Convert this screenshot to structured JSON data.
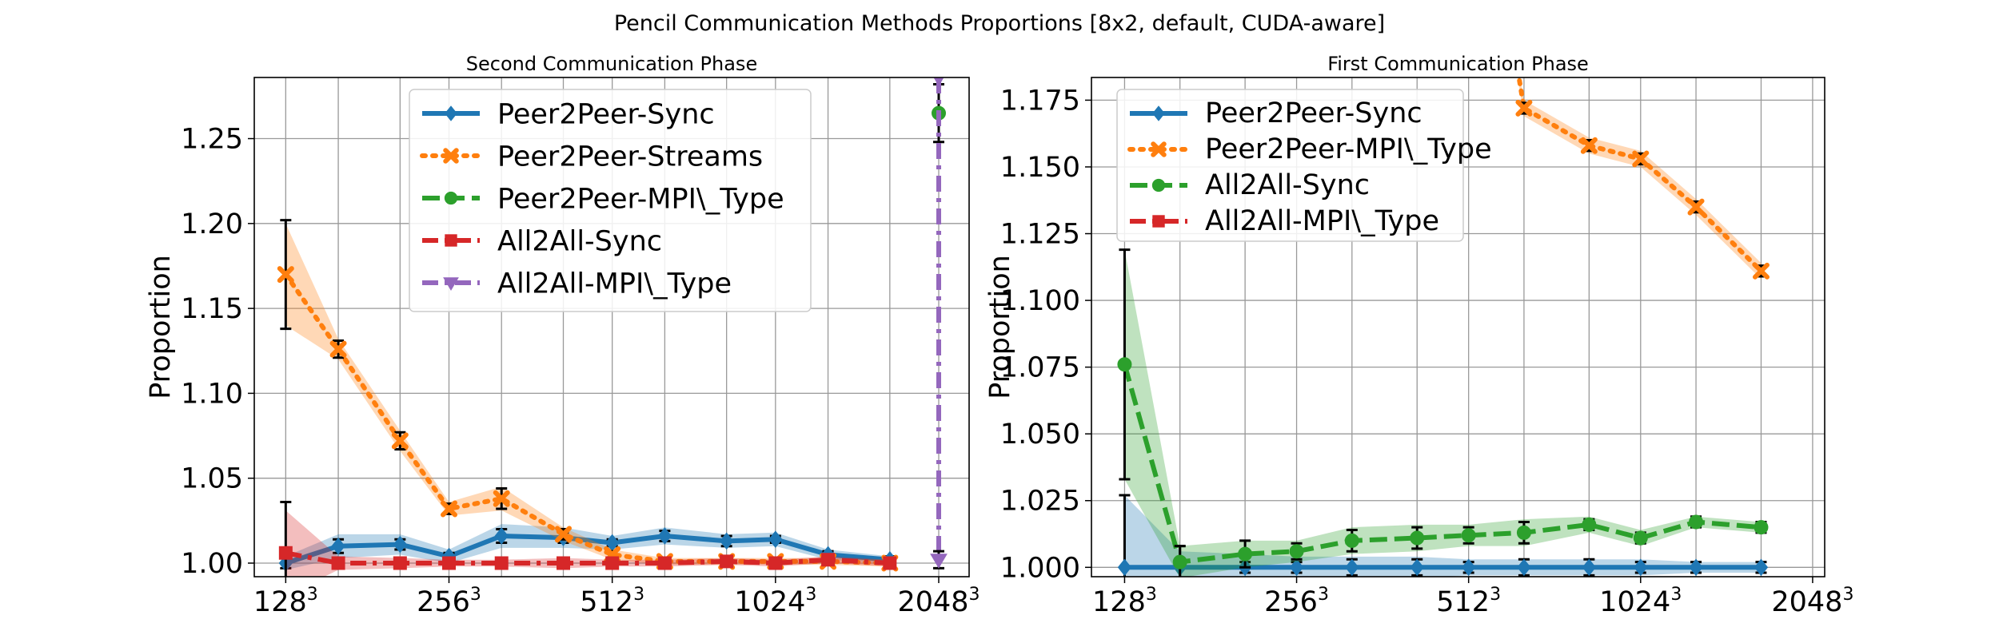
{
  "figure_title": "Pencil Communication Methods Proportions [8x2, default, CUDA-aware]",
  "chart_data": [
    {
      "type": "line",
      "title": "Second Communication Phase",
      "xlabel": "",
      "ylabel": "Proportion",
      "xscale": "log2",
      "xlim": [
        112,
        2330
      ],
      "ylim": [
        0.992,
        1.286
      ],
      "grid": true,
      "legend_position": "upper center",
      "x_ticks": [
        {
          "value": 128,
          "base": "128",
          "exp": "3"
        },
        {
          "value": 256,
          "base": "256",
          "exp": "3"
        },
        {
          "value": 512,
          "base": "512",
          "exp": "3"
        },
        {
          "value": 1024,
          "base": "1024",
          "exp": "3"
        },
        {
          "value": 2048,
          "base": "2048",
          "exp": "3"
        }
      ],
      "y_ticks": [
        "1.00",
        "1.05",
        "1.10",
        "1.15",
        "1.20",
        "1.25"
      ],
      "series": [
        {
          "name": "Peer2Peer-Sync",
          "color": "#1f77b4",
          "style": "solid",
          "marker": "diamond",
          "x": [
            128,
            160,
            208,
            256,
            320,
            416,
            512,
            640,
            832,
            1024,
            1280,
            1664
          ],
          "y": [
            1.0,
            1.01,
            1.011,
            1.004,
            1.016,
            1.015,
            1.012,
            1.016,
            1.013,
            1.014,
            1.005,
            1.002
          ],
          "err": [
            0.003,
            0.004,
            0.003,
            0.002,
            0.004,
            0.003,
            0.002,
            0.003,
            0.003,
            0.002,
            0.002,
            0.002
          ],
          "band": [
            0.004,
            0.007,
            0.006,
            0.004,
            0.007,
            0.006,
            0.004,
            0.005,
            0.004,
            0.004,
            0.003,
            0.002
          ]
        },
        {
          "name": "Peer2Peer-Streams",
          "color": "#ff7f0e",
          "style": "dotted",
          "marker": "x",
          "x": [
            128,
            160,
            208,
            256,
            320,
            416,
            512,
            640,
            832,
            1024,
            1280,
            1664
          ],
          "y": [
            1.17,
            1.126,
            1.072,
            1.032,
            1.038,
            1.017,
            1.005,
            1.001,
            1.001,
            1.001,
            1.001,
            1.0
          ],
          "err": [
            0.032,
            0.005,
            0.005,
            0.003,
            0.006,
            0.003,
            0.002,
            0.001,
            0.001,
            0.001,
            0.001,
            0.001
          ],
          "band": [
            0.03,
            0.006,
            0.006,
            0.004,
            0.007,
            0.004,
            0.003,
            0.002,
            0.002,
            0.002,
            0.002,
            0.002
          ]
        },
        {
          "name": "Peer2Peer-MPI\\_Type",
          "color": "#2ca02c",
          "style": "dashed",
          "marker": "circle",
          "x": [
            2048
          ],
          "y": [
            1.265
          ],
          "err": [
            0.017
          ],
          "band": [
            0.0
          ]
        },
        {
          "name": "All2All-Sync",
          "color": "#d62728",
          "style": "dashdot",
          "marker": "square",
          "x": [
            128,
            160,
            208,
            256,
            320,
            416,
            512,
            640,
            832,
            1024,
            1280,
            1664
          ],
          "y": [
            1.006,
            1.0,
            1.0,
            1.0,
            1.0,
            1.0,
            1.0,
            1.0,
            1.001,
            1.0,
            1.002,
            1.0
          ],
          "err": [
            0.03,
            0.002,
            0.002,
            0.001,
            0.001,
            0.003,
            0.001,
            0.001,
            0.001,
            0.001,
            0.001,
            0.001
          ],
          "band": [
            0.025,
            0.004,
            0.003,
            0.002,
            0.002,
            0.003,
            0.002,
            0.002,
            0.002,
            0.002,
            0.002,
            0.002
          ]
        },
        {
          "name": "All2All-MPI\\_Type",
          "color": "#9467bd",
          "style": "dashdot",
          "marker": "triangle-down",
          "x": [
            2048,
            2048
          ],
          "y": [
            1.286,
            1.002
          ],
          "err": [
            0.0,
            0.005
          ],
          "band": [
            0.0,
            0.0
          ]
        }
      ]
    },
    {
      "type": "line",
      "title": "First Communication Phase",
      "xlabel": "",
      "ylabel": "Proportion",
      "xscale": "log2",
      "xlim": [
        112,
        2150
      ],
      "ylim": [
        0.9965,
        1.1835
      ],
      "grid": true,
      "legend_position": "upper left",
      "x_ticks": [
        {
          "value": 128,
          "base": "128",
          "exp": "3"
        },
        {
          "value": 256,
          "base": "256",
          "exp": "3"
        },
        {
          "value": 512,
          "base": "512",
          "exp": "3"
        },
        {
          "value": 1024,
          "base": "1024",
          "exp": "3"
        },
        {
          "value": 2048,
          "base": "2048",
          "exp": "3"
        }
      ],
      "y_ticks": [
        "1.000",
        "1.025",
        "1.050",
        "1.075",
        "1.100",
        "1.125",
        "1.150",
        "1.175"
      ],
      "series": [
        {
          "name": "Peer2Peer-Sync",
          "color": "#1f77b4",
          "style": "solid",
          "marker": "diamond",
          "x": [
            128,
            160,
            208,
            256,
            320,
            416,
            512,
            640,
            832,
            1024,
            1280,
            1664
          ],
          "y": [
            1.0,
            1.0,
            1.0,
            1.0,
            1.0,
            1.0,
            1.0,
            1.0,
            1.0,
            1.0,
            1.0,
            1.0
          ],
          "err": [
            0.027,
            0.008,
            0.002,
            0.002,
            0.003,
            0.003,
            0.002,
            0.003,
            0.003,
            0.002,
            0.002,
            0.002
          ],
          "band": [
            0.027,
            0.006,
            0.005,
            0.004,
            0.004,
            0.004,
            0.003,
            0.003,
            0.003,
            0.003,
            0.002,
            0.002
          ]
        },
        {
          "name": "Peer2Peer-MPI\\_Type",
          "color": "#ff7f0e",
          "style": "dotted",
          "marker": "x",
          "x": [
            620,
            640,
            832,
            1024,
            1280,
            1664
          ],
          "y": [
            1.19,
            1.172,
            1.158,
            1.153,
            1.135,
            1.111
          ],
          "err": [
            0.002,
            0.002,
            0.002,
            0.002,
            0.002,
            0.002
          ],
          "band": [
            0.003,
            0.003,
            0.003,
            0.003,
            0.003,
            0.003
          ]
        },
        {
          "name": "All2All-Sync",
          "color": "#2ca02c",
          "style": "dashed",
          "marker": "circle",
          "x": [
            128,
            160,
            208,
            256,
            320,
            416,
            512,
            640,
            832,
            1024,
            1280,
            1664
          ],
          "y": [
            1.076,
            1.002,
            1.005,
            1.006,
            1.01,
            1.011,
            1.012,
            1.013,
            1.016,
            1.011,
            1.017,
            1.015
          ],
          "err": [
            0.043,
            0.006,
            0.005,
            0.003,
            0.004,
            0.004,
            0.003,
            0.004,
            0.002,
            0.002,
            0.002,
            0.002
          ],
          "band": [
            0.043,
            0.006,
            0.005,
            0.004,
            0.005,
            0.005,
            0.004,
            0.005,
            0.003,
            0.003,
            0.002,
            0.002
          ]
        },
        {
          "name": "All2All-MPI\\_Type",
          "color": "#d62728",
          "style": "dashdot",
          "marker": "square",
          "x": [],
          "y": [],
          "err": [],
          "band": []
        }
      ]
    }
  ]
}
